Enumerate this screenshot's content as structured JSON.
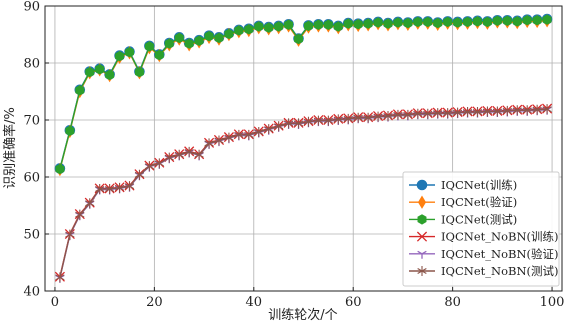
{
  "chart_data": {
    "type": "line",
    "title": "",
    "xlabel": "训练轮次/个",
    "ylabel": "识别准确率/%",
    "xlim": [
      -2,
      102
    ],
    "ylim": [
      40,
      90
    ],
    "xticks": [
      0,
      20,
      40,
      60,
      80,
      100
    ],
    "yticks": [
      40,
      50,
      60,
      70,
      80,
      90
    ],
    "grid": true,
    "legend_position": "bottom-right",
    "x": [
      1,
      3,
      5,
      7,
      9,
      11,
      13,
      15,
      17,
      19,
      21,
      23,
      25,
      27,
      29,
      31,
      33,
      35,
      37,
      39,
      41,
      43,
      45,
      47,
      49,
      51,
      53,
      55,
      57,
      59,
      61,
      63,
      65,
      67,
      69,
      71,
      73,
      75,
      77,
      79,
      81,
      83,
      85,
      87,
      89,
      91,
      93,
      95,
      97,
      99
    ],
    "series": [
      {
        "name": "IQCNet(训练)",
        "color": "#1f77b4",
        "marker": "circle",
        "values": [
          61.5,
          68.2,
          75.3,
          78.5,
          79.0,
          78.0,
          81.3,
          82.0,
          78.5,
          83.0,
          81.5,
          83.5,
          84.5,
          83.5,
          84.0,
          84.8,
          84.5,
          85.2,
          85.8,
          86.0,
          86.5,
          86.3,
          86.5,
          86.8,
          84.3,
          86.6,
          86.8,
          86.8,
          86.5,
          87.0,
          86.9,
          87.0,
          87.2,
          87.0,
          87.2,
          87.1,
          87.3,
          87.3,
          87.1,
          87.3,
          87.2,
          87.3,
          87.4,
          87.3,
          87.5,
          87.5,
          87.4,
          87.6,
          87.6,
          87.7
        ]
      },
      {
        "name": "IQCNet(验证)",
        "color": "#ff7f0e",
        "marker": "diamond",
        "values": [
          61.3,
          68.0,
          75.0,
          78.3,
          78.8,
          77.8,
          81.0,
          81.8,
          78.3,
          82.7,
          81.3,
          83.2,
          84.2,
          83.2,
          83.7,
          84.5,
          84.2,
          85.0,
          85.5,
          85.7,
          86.2,
          86.0,
          86.2,
          86.5,
          84.0,
          86.3,
          86.5,
          86.5,
          86.2,
          86.7,
          86.6,
          86.7,
          86.9,
          86.7,
          86.9,
          86.8,
          87.0,
          87.0,
          86.8,
          87.0,
          86.9,
          87.0,
          87.1,
          87.0,
          87.2,
          87.2,
          87.1,
          87.3,
          87.3,
          87.4
        ]
      },
      {
        "name": "IQCNet(测试)",
        "color": "#2ca02c",
        "marker": "hexagon",
        "values": [
          61.4,
          68.1,
          75.2,
          78.4,
          78.9,
          77.9,
          81.2,
          81.9,
          78.4,
          82.9,
          81.4,
          83.4,
          84.4,
          83.4,
          83.9,
          84.7,
          84.4,
          85.1,
          85.7,
          85.9,
          86.4,
          86.2,
          86.4,
          86.7,
          84.2,
          86.5,
          86.7,
          86.7,
          86.4,
          86.9,
          86.8,
          86.9,
          87.1,
          86.9,
          87.1,
          87.0,
          87.2,
          87.2,
          87.0,
          87.2,
          87.1,
          87.2,
          87.3,
          87.2,
          87.4,
          87.4,
          87.3,
          87.5,
          87.5,
          87.6
        ]
      },
      {
        "name": "IQCNet_NoBN(训练)",
        "color": "#d62728",
        "marker": "x",
        "values": [
          42.5,
          50.0,
          53.5,
          55.5,
          58.0,
          58.0,
          58.2,
          58.5,
          60.5,
          62.0,
          62.5,
          63.5,
          64.0,
          64.5,
          64.0,
          66.0,
          66.5,
          67.0,
          67.5,
          67.5,
          68.0,
          68.5,
          69.0,
          69.5,
          69.5,
          69.8,
          70.0,
          70.0,
          70.2,
          70.3,
          70.5,
          70.5,
          70.7,
          70.8,
          71.0,
          71.0,
          71.2,
          71.2,
          71.3,
          71.3,
          71.4,
          71.5,
          71.5,
          71.6,
          71.6,
          71.7,
          71.8,
          71.8,
          71.9,
          72.0
        ]
      },
      {
        "name": "IQCNet_NoBN(验证)",
        "color": "#9467bd",
        "marker": "tri",
        "values": [
          42.3,
          49.8,
          53.3,
          55.3,
          57.8,
          57.8,
          58.0,
          58.3,
          60.3,
          61.8,
          62.3,
          63.3,
          63.8,
          64.3,
          63.8,
          65.8,
          66.3,
          66.8,
          67.3,
          67.3,
          67.8,
          68.3,
          68.8,
          69.3,
          69.3,
          69.6,
          69.8,
          69.8,
          70.0,
          70.1,
          70.3,
          70.3,
          70.5,
          70.6,
          70.8,
          70.8,
          71.0,
          71.0,
          71.1,
          71.1,
          71.2,
          71.3,
          71.3,
          71.4,
          71.4,
          71.5,
          71.6,
          71.6,
          71.7,
          71.8
        ]
      },
      {
        "name": "IQCNet_NoBN(测试)",
        "color": "#8c564b",
        "marker": "star",
        "values": [
          42.4,
          49.9,
          53.4,
          55.4,
          57.9,
          57.9,
          58.1,
          58.4,
          60.4,
          61.9,
          62.4,
          63.4,
          63.9,
          64.4,
          63.9,
          65.9,
          66.4,
          66.9,
          67.4,
          67.4,
          67.9,
          68.4,
          68.9,
          69.4,
          69.4,
          69.7,
          69.9,
          69.9,
          70.1,
          70.2,
          70.4,
          70.4,
          70.6,
          70.7,
          70.9,
          70.9,
          71.1,
          71.1,
          71.2,
          71.2,
          71.3,
          71.4,
          71.4,
          71.5,
          71.5,
          71.6,
          71.7,
          71.7,
          71.8,
          71.9
        ]
      }
    ]
  }
}
